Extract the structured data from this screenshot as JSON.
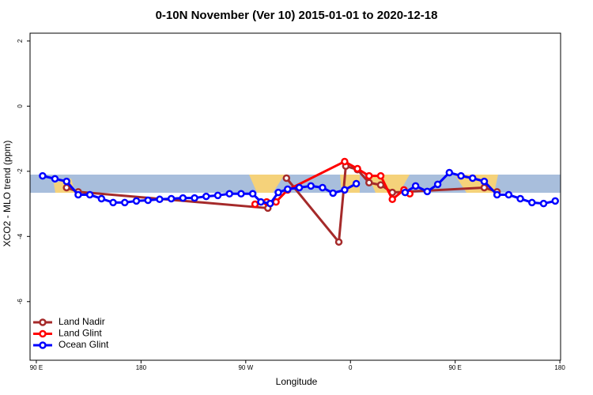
{
  "chart_data": {
    "type": "line",
    "title": "0-10N November (Ver 10)   2015-01-01 to 2020-12-18",
    "x_label": "Longitude",
    "y_label": "XCO2 - MLO trend (ppm)",
    "xlim": [
      84.6,
      540.6
    ],
    "ylim": [
      -7.8,
      2.24
    ],
    "xticks": [
      {
        "value": 90,
        "label": "90 E"
      },
      {
        "value": 180,
        "label": "180"
      },
      {
        "value": 270,
        "label": "90 W"
      },
      {
        "value": 360,
        "label": "0"
      },
      {
        "value": 450,
        "label": "90 E"
      },
      {
        "value": 540,
        "label": "180"
      }
    ],
    "yticks": [
      2,
      0,
      -2,
      -4,
      -6
    ],
    "legend": "bottom-left",
    "series": [
      {
        "name": "Land Nadir",
        "color": "#a52a2a",
        "x": [
          116,
          126,
          289,
          299,
          305,
          350,
          356,
          366,
          376,
          386,
          396,
          475,
          486
        ],
        "values": [
          -2.5,
          -2.63,
          -3.13,
          null,
          -2.21,
          -4.17,
          -1.84,
          -1.95,
          -2.35,
          -2.42,
          -2.65,
          -2.5,
          -2.63
        ]
      },
      {
        "name": "Land Glint",
        "color": "#ff0000",
        "x": [
          278,
          288,
          296,
          306,
          355,
          366,
          376,
          386,
          396,
          406,
          411
        ],
        "values": [
          -3.01,
          -2.94,
          -2.94,
          -2.57,
          -1.7,
          -1.92,
          -2.14,
          -2.14,
          -2.86,
          -2.57,
          -2.69
        ]
      },
      {
        "name": "Ocean Glint",
        "color": "#0000ff",
        "x": [
          95.4,
          106,
          116,
          126,
          136,
          146,
          156,
          166,
          176,
          186,
          196,
          206,
          216,
          226,
          236,
          246,
          256,
          266,
          276,
          283,
          291,
          298,
          306,
          316,
          326,
          336,
          345,
          355,
          365,
          385,
          407,
          416,
          426,
          435,
          445,
          455,
          465,
          475,
          486,
          496,
          506,
          516,
          526,
          536
        ],
        "values": [
          -2.14,
          -2.23,
          -2.31,
          -2.72,
          -2.72,
          -2.84,
          -2.96,
          -2.96,
          -2.91,
          -2.89,
          -2.86,
          -2.84,
          -2.82,
          -2.82,
          -2.77,
          -2.74,
          -2.69,
          -2.69,
          -2.69,
          -2.94,
          -2.99,
          -2.65,
          -2.55,
          -2.5,
          -2.45,
          -2.5,
          -2.67,
          -2.57,
          -2.38,
          null,
          -2.65,
          -2.45,
          -2.62,
          -2.4,
          -2.04,
          -2.14,
          -2.21,
          -2.31,
          -2.72,
          -2.72,
          -2.84,
          -2.96,
          -2.99,
          -2.91
        ]
      }
    ]
  }
}
